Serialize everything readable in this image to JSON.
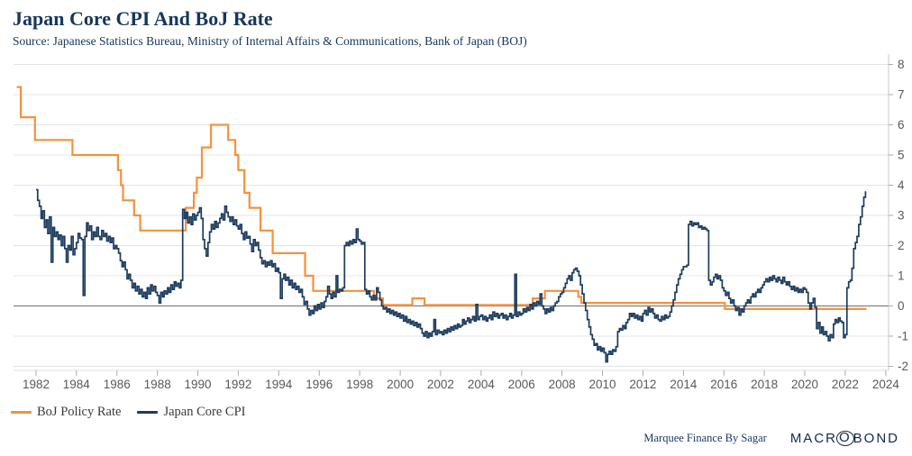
{
  "header": {
    "title": "Japan Core CPI And BoJ Rate",
    "source": "Source: Japanese Statistics Bureau, Ministry of Internal Affairs & Communications, Bank of Japan (BOJ)"
  },
  "legend": [
    {
      "label": "BoJ Policy Rate",
      "color_key": "policy"
    },
    {
      "label": "Japan Core CPI",
      "color_key": "cpi"
    }
  ],
  "footer": {
    "credit": "Marquee Finance By Sagar",
    "brand": "MACROBOND",
    "brand_parts": [
      "MACR",
      "O",
      "BOND"
    ]
  },
  "colors": {
    "policy": "#F5913D",
    "cpi": "#1C3B5E",
    "grid": "#E4E4E4",
    "zero_line": "#7F7F7F",
    "axis": "#C9C9C9",
    "tick": "#ABABAB",
    "tick_label": "#595959",
    "title_navy": "#17365D"
  },
  "chart_data": {
    "type": "line",
    "title": "Japan Core CPI And BoJ Rate",
    "xlabel": "",
    "ylabel": "",
    "grid": true,
    "legend_position": "bottom-left",
    "x_axis": {
      "min": 1981.0,
      "max": 2024.1,
      "ticks": [
        1982,
        1984,
        1986,
        1988,
        1990,
        1992,
        1994,
        1996,
        1998,
        2000,
        2002,
        2004,
        2006,
        2008,
        2010,
        2012,
        2014,
        2016,
        2018,
        2020,
        2022,
        2024
      ]
    },
    "y_axis": {
      "min": -2.2,
      "max": 8.2,
      "ticks": [
        -2,
        -1,
        0,
        1,
        2,
        3,
        4,
        5,
        6,
        7,
        8
      ],
      "position": "right"
    },
    "series": [
      {
        "name": "BoJ Policy Rate",
        "render": "step",
        "points": [
          [
            1981.05,
            7.25
          ],
          [
            1981.25,
            6.25
          ],
          [
            1981.95,
            5.5
          ],
          [
            1983.8,
            5.0
          ],
          [
            1986.05,
            4.5
          ],
          [
            1986.2,
            4.0
          ],
          [
            1986.3,
            3.5
          ],
          [
            1986.85,
            3.0
          ],
          [
            1987.15,
            2.5
          ],
          [
            1989.4,
            3.25
          ],
          [
            1989.8,
            3.75
          ],
          [
            1989.95,
            4.25
          ],
          [
            1990.2,
            5.25
          ],
          [
            1990.65,
            6.0
          ],
          [
            1991.5,
            5.5
          ],
          [
            1991.85,
            5.0
          ],
          [
            1992.0,
            4.5
          ],
          [
            1992.3,
            3.75
          ],
          [
            1992.55,
            3.25
          ],
          [
            1993.1,
            2.5
          ],
          [
            1993.7,
            1.75
          ],
          [
            1995.3,
            1.0
          ],
          [
            1995.7,
            0.5
          ],
          [
            1998.7,
            0.25
          ],
          [
            1999.15,
            0.03
          ],
          [
            2000.6,
            0.25
          ],
          [
            2001.2,
            0.03
          ],
          [
            2006.55,
            0.25
          ],
          [
            2007.15,
            0.5
          ],
          [
            2008.8,
            0.3
          ],
          [
            2008.95,
            0.1
          ],
          [
            2016.05,
            -0.1
          ],
          [
            2023.05,
            -0.1
          ]
        ]
      },
      {
        "name": "Japan Core CPI",
        "render": "step",
        "x_start": 1982.0,
        "x_step": 0.0833333,
        "values": [
          3.85,
          3.5,
          3.3,
          2.9,
          3.15,
          2.6,
          2.85,
          2.4,
          2.95,
          1.45,
          2.6,
          2.3,
          2.45,
          2.2,
          2.35,
          2.0,
          2.3,
          1.9,
          1.45,
          2.0,
          1.85,
          2.3,
          1.7,
          1.9,
          2.1,
          2.4,
          2.25,
          2.2,
          0.35,
          2.3,
          2.75,
          2.5,
          2.65,
          2.2,
          2.45,
          2.3,
          2.6,
          2.3,
          2.2,
          2.5,
          2.3,
          2.4,
          2.15,
          2.3,
          2.1,
          2.25,
          1.9,
          2.0,
          1.9,
          1.75,
          1.5,
          1.3,
          1.45,
          1.2,
          0.9,
          1.05,
          0.85,
          0.6,
          0.75,
          0.5,
          0.65,
          0.4,
          0.55,
          0.3,
          0.45,
          0.25,
          0.6,
          0.4,
          0.7,
          0.5,
          0.65,
          0.45,
          0.35,
          0.1,
          0.45,
          0.3,
          0.5,
          0.4,
          0.6,
          0.45,
          0.7,
          0.55,
          0.8,
          0.65,
          0.75,
          0.6,
          0.85,
          3.2,
          2.9,
          3.1,
          2.75,
          2.95,
          2.7,
          3.05,
          2.85,
          3.0,
          3.1,
          3.25,
          2.9,
          2.2,
          1.9,
          1.65,
          2.1,
          2.45,
          2.7,
          2.55,
          2.8,
          2.6,
          2.75,
          2.9,
          3.05,
          2.85,
          3.3,
          3.1,
          2.95,
          2.8,
          2.95,
          2.7,
          2.85,
          2.65,
          2.55,
          2.7,
          2.4,
          2.2,
          2.45,
          2.25,
          2.3,
          2.05,
          1.8,
          2.2,
          2.0,
          2.1,
          1.85,
          1.6,
          1.4,
          1.5,
          1.3,
          1.45,
          1.35,
          1.5,
          1.3,
          1.4,
          1.15,
          1.25,
          1.1,
          0.25,
          0.9,
          1.05,
          0.85,
          0.95,
          0.7,
          0.85,
          0.6,
          0.75,
          0.55,
          0.65,
          0.45,
          0.55,
          0.3,
          0.05,
          0.15,
          -0.1,
          -0.3,
          -0.15,
          -0.25,
          0.0,
          -0.15,
          0.05,
          -0.1,
          0.1,
          -0.05,
          0.15,
          0.3,
          0.65,
          0.4,
          0.25,
          0.45,
          0.3,
          1.0,
          0.45,
          0.55,
          0.5,
          0.6,
          2.0,
          2.1,
          2.0,
          2.15,
          2.05,
          2.2,
          2.1,
          2.55,
          2.2,
          2.15,
          2.05,
          2.1,
          0.55,
          0.4,
          0.5,
          0.3,
          0.2,
          0.35,
          0.2,
          0.6,
          0.45,
          0.2,
          0.0,
          -0.1,
          -0.05,
          -0.2,
          -0.1,
          -0.25,
          -0.15,
          -0.3,
          -0.2,
          -0.35,
          -0.25,
          -0.4,
          -0.3,
          -0.5,
          -0.35,
          -0.55,
          -0.45,
          -0.6,
          -0.5,
          -0.65,
          -0.55,
          -0.7,
          -0.6,
          -0.75,
          -0.9,
          -1.0,
          -0.85,
          -1.05,
          -0.9,
          -1.0,
          -0.85,
          -0.45,
          -0.95,
          -0.8,
          -0.9,
          -0.85,
          -0.95,
          -0.8,
          -0.9,
          -0.75,
          -0.85,
          -0.7,
          -0.8,
          -0.65,
          -0.75,
          -0.6,
          -0.7,
          -0.65,
          -0.45,
          -0.6,
          -0.5,
          -0.4,
          -0.55,
          -0.45,
          -0.35,
          -0.5,
          0.05,
          -0.45,
          -0.35,
          -0.3,
          -0.45,
          -0.35,
          -0.5,
          -0.4,
          -0.3,
          -0.45,
          -0.2,
          -0.35,
          -0.25,
          -0.4,
          -0.3,
          -0.25,
          -0.4,
          -0.3,
          -0.45,
          -0.35,
          -0.25,
          -0.4,
          -0.3,
          1.05,
          -0.35,
          -0.2,
          -0.3,
          -0.25,
          -0.1,
          -0.2,
          -0.05,
          -0.15,
          0.05,
          -0.1,
          0.1,
          0.0,
          0.15,
          0.05,
          0.4,
          0.0,
          -0.1,
          -0.25,
          -0.1,
          -0.2,
          -0.05,
          -0.15,
          0.0,
          0.1,
          0.15,
          0.3,
          0.4,
          0.45,
          0.6,
          0.75,
          0.9,
          1.0,
          0.85,
          1.1,
          1.2,
          1.25,
          1.15,
          1.0,
          0.7,
          0.4,
          0.1,
          -0.15,
          -0.45,
          -0.7,
          -0.95,
          -1.1,
          -1.3,
          -1.25,
          -1.45,
          -1.35,
          -1.5,
          -1.4,
          -1.55,
          -1.85,
          -1.6,
          -1.5,
          -1.6,
          -1.45,
          -1.5,
          -1.35,
          -0.85,
          -0.75,
          -0.8,
          -0.65,
          -0.75,
          -0.55,
          -0.45,
          -0.25,
          -0.35,
          -0.25,
          -0.4,
          -0.3,
          -0.45,
          -0.35,
          -0.5,
          -0.25,
          -0.15,
          -0.3,
          -0.05,
          -0.2,
          -0.1,
          -0.25,
          -0.4,
          -0.3,
          -0.45,
          -0.5,
          -0.35,
          -0.45,
          -0.3,
          -0.4,
          -0.35,
          -0.2,
          0.0,
          0.2,
          0.45,
          0.7,
          0.9,
          1.05,
          1.2,
          1.3,
          1.3,
          1.35,
          2.7,
          2.8,
          2.65,
          2.75,
          2.7,
          2.75,
          2.6,
          2.65,
          2.55,
          2.6,
          2.55,
          2.5,
          0.85,
          0.7,
          0.8,
          0.95,
          1.05,
          0.9,
          1.0,
          0.85,
          0.6,
          0.5,
          0.35,
          0.45,
          0.25,
          0.1,
          0.2,
          0.0,
          -0.15,
          -0.05,
          -0.3,
          -0.1,
          -0.2,
          0.0,
          0.1,
          0.2,
          0.1,
          0.3,
          0.4,
          0.3,
          0.45,
          0.55,
          0.45,
          0.6,
          0.7,
          0.8,
          0.9,
          0.8,
          0.95,
          0.85,
          1.0,
          0.9,
          0.8,
          0.95,
          0.85,
          0.75,
          0.95,
          0.8,
          0.7,
          0.8,
          0.65,
          0.55,
          0.65,
          0.5,
          0.6,
          0.45,
          0.55,
          0.45,
          0.6,
          0.55,
          0.45,
          0.1,
          -0.1,
          0.1,
          0.25,
          -0.05,
          -0.75,
          -0.55,
          -0.9,
          -0.7,
          -0.95,
          -0.85,
          -1.0,
          -1.15,
          -0.95,
          -1.05,
          -0.6,
          -0.45,
          -0.55,
          -0.4,
          -0.5,
          -0.55,
          -1.05,
          -0.95,
          0.6,
          0.8,
          0.85,
          1.25,
          1.9,
          2.1,
          2.3,
          2.7,
          2.95,
          3.3,
          3.6,
          3.8
        ]
      }
    ]
  }
}
